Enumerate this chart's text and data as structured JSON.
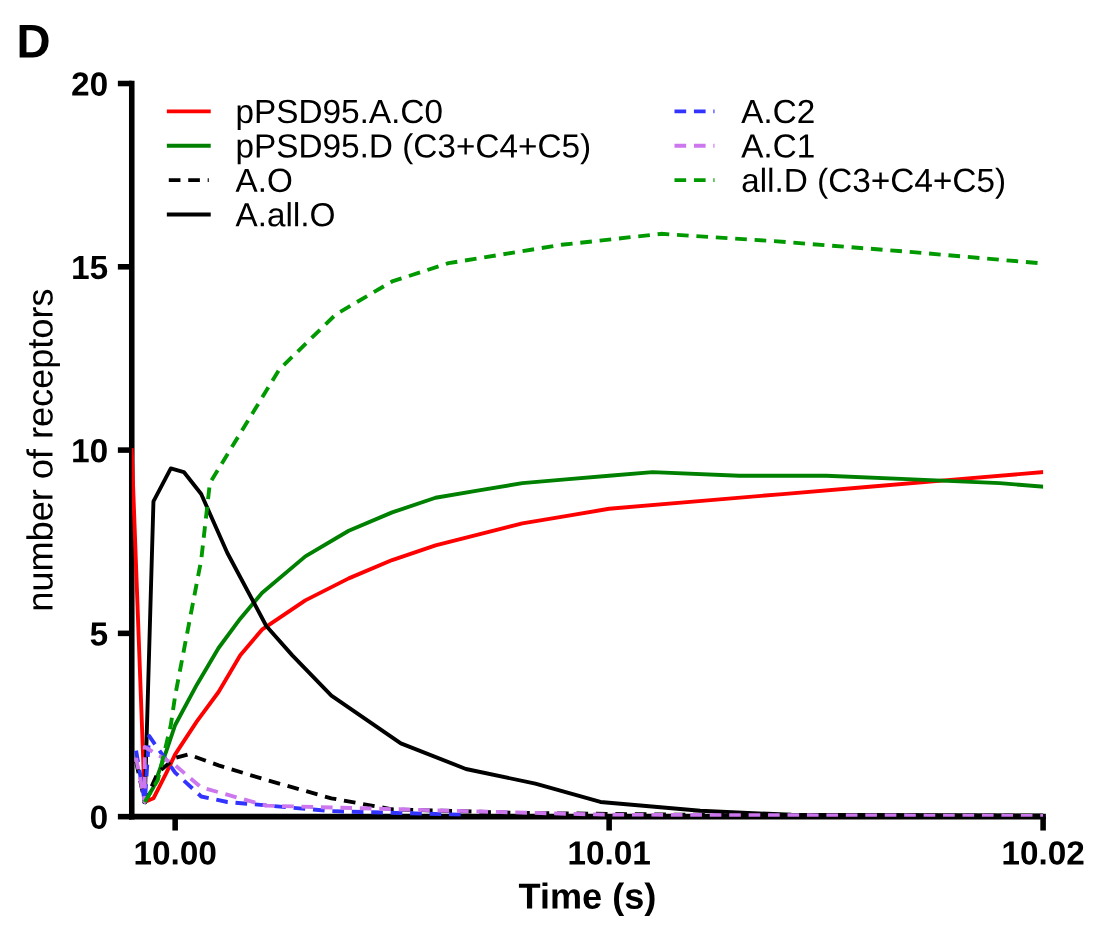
{
  "chart_data": {
    "type": "line",
    "title": "D",
    "xlabel": "Time (s)",
    "ylabel": "number of receptors",
    "xlim": [
      9.999,
      10.02
    ],
    "xticks": [
      {
        "value": 10.0,
        "label": "10.00"
      },
      {
        "value": 10.01,
        "label": "10.01"
      },
      {
        "value": 10.02,
        "label": "10.02"
      }
    ],
    "ylim": [
      0,
      20
    ],
    "yticks": [
      0,
      5,
      10,
      15,
      20
    ],
    "grid": false,
    "legend": "top",
    "marker": "none",
    "series": [
      {
        "name": "pPSD95.A.C0",
        "color": "#ff0000",
        "line_style": "solid",
        "x": [
          9.999,
          9.9993,
          9.9995,
          9.9998,
          10.0,
          10.0005,
          10.001,
          10.0015,
          10.002,
          10.003,
          10.004,
          10.005,
          10.006,
          10.007,
          10.008,
          10.009,
          10.01,
          10.012,
          10.014,
          10.016,
          10.018,
          10.02
        ],
        "values": [
          10,
          0.4,
          0.5,
          1.2,
          1.7,
          2.6,
          3.4,
          4.4,
          5.1,
          5.9,
          6.5,
          7.0,
          7.4,
          7.7,
          8.0,
          8.2,
          8.4,
          8.6,
          8.8,
          9.0,
          9.2,
          9.4
        ]
      },
      {
        "name": "pPSD95.D (C3+C4+C5)",
        "color": "#008000",
        "line_style": "solid",
        "x": [
          9.9993,
          9.9995,
          9.9998,
          10.0,
          10.0005,
          10.001,
          10.0015,
          10.002,
          10.003,
          10.004,
          10.005,
          10.006,
          10.007,
          10.008,
          10.009,
          10.01,
          10.011,
          10.013,
          10.015,
          10.017,
          10.019,
          10.02
        ],
        "values": [
          0.4,
          0.8,
          1.8,
          2.5,
          3.6,
          4.6,
          5.4,
          6.1,
          7.1,
          7.8,
          8.3,
          8.7,
          8.9,
          9.1,
          9.2,
          9.3,
          9.4,
          9.3,
          9.3,
          9.2,
          9.1,
          9.0
        ]
      },
      {
        "name": "A.O",
        "color": "#000000",
        "line_style": "dashed",
        "x": [
          9.9991,
          9.9993,
          9.9996,
          10.0,
          10.0003,
          10.001,
          10.0021,
          10.003,
          10.0036,
          10.005,
          10.008,
          10.012,
          10.02
        ],
        "values": [
          1.5,
          0.4,
          1.2,
          1.6,
          1.7,
          1.4,
          1.0,
          0.7,
          0.5,
          0.2,
          0.1,
          0.05,
          0.02
        ]
      },
      {
        "name": "A.all.O",
        "color": "#000000",
        "line_style": "solid",
        "x": [
          9.9993,
          9.9995,
          9.9999,
          10.0002,
          10.0006,
          10.0012,
          10.0021,
          10.0027,
          10.0036,
          10.0052,
          10.0067,
          10.0083,
          10.0098,
          10.0121,
          10.0142,
          10.02
        ],
        "values": [
          0.4,
          8.6,
          9.5,
          9.4,
          8.8,
          7.2,
          5.2,
          4.4,
          3.3,
          2.0,
          1.3,
          0.9,
          0.4,
          0.16,
          0.05,
          0.03
        ]
      },
      {
        "name": "A.C2",
        "color": "#3333ff",
        "line_style": "dashed",
        "x": [
          9.9991,
          9.9993,
          9.9994,
          10.0,
          10.0006,
          10.0012,
          10.0036,
          10.0067
        ],
        "values": [
          1.8,
          0.4,
          2.2,
          1.2,
          0.55,
          0.4,
          0.15,
          0.05
        ]
      },
      {
        "name": "A.C1",
        "color": "#cc77ee",
        "line_style": "dashed",
        "x": [
          9.9991,
          9.9993,
          9.9993,
          10.0,
          10.0006,
          10.0012,
          10.0021,
          10.0036,
          10.0067,
          10.01,
          10.02
        ],
        "values": [
          1.6,
          0.4,
          1.9,
          1.4,
          0.8,
          0.6,
          0.3,
          0.25,
          0.15,
          0.05,
          0.02
        ]
      },
      {
        "name": "all.D (C3+C4+C5)",
        "color": "#009900",
        "line_style": "dashed",
        "x": [
          9.9993,
          9.9996,
          9.9999,
          10.0,
          10.0006,
          10.0008,
          10.0024,
          10.0037,
          10.005,
          10.0063,
          10.0089,
          10.0112,
          10.0138,
          10.017,
          10.0199
        ],
        "values": [
          0.4,
          1.0,
          2.5,
          3.3,
          7.0,
          9.1,
          12.2,
          13.7,
          14.6,
          15.1,
          15.6,
          15.9,
          15.7,
          15.4,
          15.1
        ]
      }
    ]
  }
}
